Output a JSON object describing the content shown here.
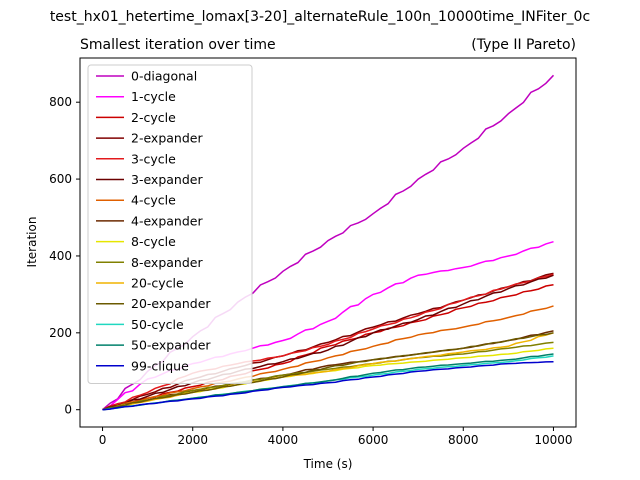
{
  "figure_title": "test_hx01_hetertime_lomax[3-20]_alternateRule_100n_10000time_INFiter_0c",
  "chart_data": {
    "type": "line",
    "title_left": "Smallest iteration over time",
    "title_right": "(Type II Pareto)",
    "xlabel": "Time (s)",
    "ylabel": "Iteration",
    "xlim": [
      -500,
      10500
    ],
    "ylim": [
      -45,
      915
    ],
    "xticks": [
      0,
      2000,
      4000,
      6000,
      8000,
      10000
    ],
    "yticks": [
      0,
      200,
      400,
      600,
      800
    ],
    "grid": false,
    "legend_position": "top-left",
    "x": [
      0,
      1000,
      2000,
      3000,
      4000,
      5000,
      6000,
      7000,
      8000,
      9000,
      10000
    ],
    "series": [
      {
        "name": "0-diagonal",
        "color": "#bf00bf",
        "values": [
          0,
          100,
          190,
          280,
          360,
          440,
          510,
          600,
          680,
          770,
          870
        ]
      },
      {
        "name": "1-cycle",
        "color": "#ff00ff",
        "values": [
          0,
          80,
          120,
          150,
          180,
          230,
          300,
          350,
          370,
          400,
          437
        ]
      },
      {
        "name": "2-cycle",
        "color": "#cc0000",
        "values": [
          0,
          30,
          60,
          90,
          120,
          165,
          200,
          230,
          265,
          295,
          325
        ]
      },
      {
        "name": "2-expander",
        "color": "#800000",
        "values": [
          0,
          40,
          80,
          110,
          140,
          175,
          215,
          250,
          285,
          320,
          355
        ]
      },
      {
        "name": "3-cycle",
        "color": "#e31a1c",
        "values": [
          0,
          45,
          95,
          120,
          140,
          170,
          210,
          245,
          285,
          320,
          352
        ]
      },
      {
        "name": "3-expander",
        "color": "#6b0000",
        "values": [
          0,
          35,
          70,
          100,
          125,
          155,
          200,
          235,
          275,
          315,
          350
        ]
      },
      {
        "name": "4-cycle",
        "color": "#e06000",
        "values": [
          0,
          30,
          55,
          80,
          105,
          135,
          165,
          195,
          215,
          240,
          270
        ]
      },
      {
        "name": "4-expander",
        "color": "#6b2a00",
        "values": [
          0,
          25,
          50,
          70,
          90,
          115,
          130,
          145,
          160,
          180,
          205
        ]
      },
      {
        "name": "8-cycle",
        "color": "#e6e600",
        "values": [
          0,
          25,
          45,
          65,
          85,
          100,
          115,
          125,
          135,
          145,
          160
        ]
      },
      {
        "name": "8-expander",
        "color": "#808000",
        "values": [
          0,
          25,
          50,
          70,
          90,
          105,
          120,
          135,
          145,
          160,
          175
        ]
      },
      {
        "name": "20-cycle",
        "color": "#f0b400",
        "values": [
          0,
          22,
          45,
          65,
          85,
          100,
          120,
          135,
          150,
          165,
          200
        ]
      },
      {
        "name": "20-expander",
        "color": "#6b5a00",
        "values": [
          0,
          25,
          45,
          65,
          85,
          110,
          130,
          145,
          160,
          180,
          200
        ]
      },
      {
        "name": "50-cycle",
        "color": "#20d8c0",
        "values": [
          0,
          15,
          30,
          45,
          60,
          75,
          90,
          105,
          115,
          125,
          140
        ]
      },
      {
        "name": "50-expander",
        "color": "#00806b",
        "values": [
          0,
          15,
          30,
          45,
          60,
          75,
          95,
          110,
          120,
          130,
          145
        ]
      },
      {
        "name": "99-clique",
        "color": "#0000cc",
        "values": [
          0,
          15,
          28,
          42,
          58,
          70,
          85,
          100,
          110,
          120,
          125
        ]
      }
    ]
  }
}
